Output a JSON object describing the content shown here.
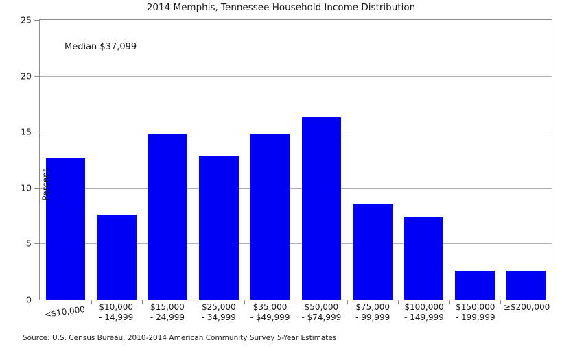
{
  "colors": {
    "bar": "#0000f5",
    "grid": "#b0b0b0",
    "spine": "#8a8a8a",
    "text": "#1a1a1a"
  },
  "source_note": "Source: U.S. Census Bureau, 2010-2014 American Community Survey 5-Year Estimates",
  "chart_data": {
    "type": "bar",
    "title": "2014 Memphis, Tennessee Household Income Distribution",
    "categories": [
      "<$10,000",
      "$10,000\n- 14,999",
      "$15,000\n- 24,999",
      "$25,000\n- 34,999",
      "$35,000\n- $49,999",
      "$50,000\n- $74,999",
      "$75,000\n- 99,999",
      "$100,000\n- 149,999",
      "$150,000\n- 199,999",
      "≥$200,000"
    ],
    "values": [
      12.6,
      7.6,
      14.8,
      12.8,
      14.8,
      16.3,
      8.6,
      7.4,
      2.6,
      2.6
    ],
    "xlabel": "",
    "ylabel": "Percent",
    "ylim": [
      0,
      25
    ],
    "yticks": [
      0,
      5,
      10,
      15,
      20,
      25
    ],
    "grid": true,
    "legend": "none",
    "annotations": [
      "Median $37,099"
    ]
  }
}
